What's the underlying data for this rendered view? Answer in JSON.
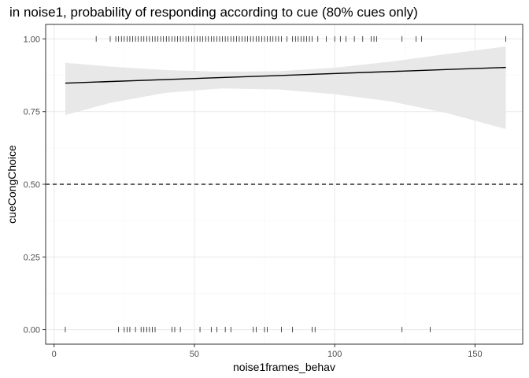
{
  "chart_data": {
    "type": "scatter",
    "title": "in noise1, probability of responding according to cue (80% cues only)",
    "xlabel": "noise1frames_behav",
    "ylabel": "cueCongChoice",
    "xlim": [
      -3,
      167
    ],
    "ylim": [
      -0.05,
      1.05
    ],
    "x_ticks": [
      0,
      50,
      100,
      150
    ],
    "x_tick_labels": [
      "0",
      "50",
      "100",
      "150"
    ],
    "y_ticks": [
      0,
      0.25,
      0.5,
      0.75,
      1.0
    ],
    "y_tick_labels": [
      "0.00",
      "0.25",
      "0.50",
      "0.75",
      "1.00"
    ],
    "grid": true,
    "reference_line": {
      "y": 0.5,
      "style": "dashed"
    },
    "rug_y1": [
      15,
      20,
      22,
      23,
      24,
      25,
      26,
      27,
      28,
      29,
      30,
      31,
      32,
      33,
      34,
      35,
      36,
      37,
      38,
      39,
      40,
      41,
      42,
      43,
      44,
      45,
      46,
      47,
      48,
      49,
      50,
      51,
      52,
      53,
      54,
      55,
      56,
      57,
      58,
      59,
      60,
      61,
      62,
      63,
      64,
      65,
      66,
      67,
      68,
      69,
      70,
      71,
      72,
      73,
      74,
      75,
      76,
      77,
      78,
      79,
      80,
      81,
      83,
      85,
      86,
      87,
      88,
      89,
      90,
      91,
      92,
      94,
      97,
      100,
      102,
      104,
      107,
      110,
      113,
      114,
      115,
      124,
      129,
      131,
      161
    ],
    "rug_y0": [
      4,
      23,
      25,
      26,
      27,
      29,
      31,
      32,
      33,
      34,
      35,
      36,
      42,
      43,
      45,
      52,
      56,
      58,
      61,
      63,
      71,
      72,
      75,
      76,
      81,
      85,
      92,
      93,
      124,
      134
    ],
    "fit_line": {
      "x": [
        4,
        161
      ],
      "y": [
        0.848,
        0.902
      ]
    },
    "confidence_band": {
      "x": [
        4,
        20,
        40,
        60,
        80,
        100,
        120,
        140,
        161
      ],
      "upper": [
        0.918,
        0.905,
        0.893,
        0.887,
        0.889,
        0.901,
        0.922,
        0.948,
        0.974
      ],
      "lower": [
        0.738,
        0.78,
        0.815,
        0.83,
        0.826,
        0.81,
        0.785,
        0.745,
        0.69
      ]
    },
    "colors": {
      "band": "#e8e8e8",
      "line": "#000000",
      "grid_major": "#ebebeb",
      "grid_minor": "#f4f4f4",
      "panel_border": "#333333",
      "rug": "#000000"
    }
  }
}
